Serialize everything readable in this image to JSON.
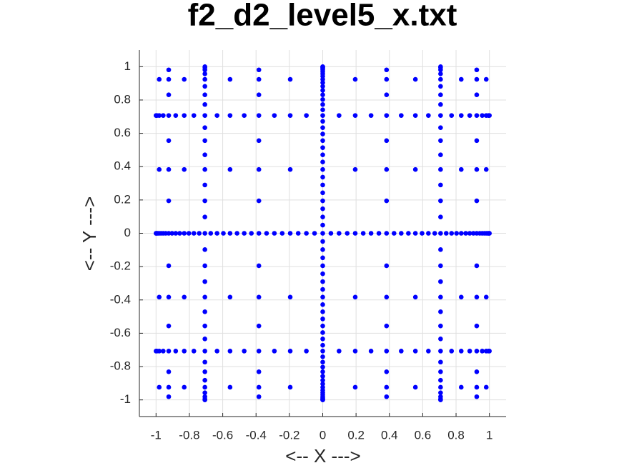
{
  "chart_data": {
    "type": "scatter",
    "title": "f2_d2_level5_x.txt",
    "x_label": "<-- X --->",
    "y_label": "<-- Y --->",
    "color": "#0000ff",
    "grid": true,
    "xlim": [
      -1.1,
      1.1
    ],
    "ylim": [
      -1.1,
      1.1
    ],
    "xticks": [
      -1,
      -0.8,
      -0.6,
      -0.4,
      -0.2,
      0,
      0.2,
      0.4,
      0.6,
      0.8,
      1
    ],
    "yticks": [
      -1,
      -0.8,
      -0.6,
      -0.4,
      -0.2,
      0,
      0.2,
      0.4,
      0.6,
      0.8,
      1
    ],
    "rows": [
      {
        "y": 1,
        "x": [
          -0.707,
          0,
          0.707
        ]
      },
      {
        "y": 0.999,
        "x": [
          0
        ]
      },
      {
        "y": 0.995,
        "x": [
          -0.707,
          0,
          0.707
        ]
      },
      {
        "y": 0.989,
        "x": [
          0
        ]
      },
      {
        "y": 0.981,
        "x": [
          -0.924,
          -0.707,
          -0.383,
          0,
          0.383,
          0.707,
          0.924
        ]
      },
      {
        "y": 0.97,
        "x": [
          0
        ]
      },
      {
        "y": 0.957,
        "x": [
          -0.707,
          0,
          0.707
        ]
      },
      {
        "y": 0.942,
        "x": [
          0
        ]
      },
      {
        "y": 0.924,
        "x": [
          -0.981,
          -0.924,
          -0.831,
          -0.707,
          -0.556,
          -0.383,
          -0.195,
          0,
          0.195,
          0.383,
          0.556,
          0.707,
          0.831,
          0.924,
          0.981
        ]
      },
      {
        "y": 0.904,
        "x": [
          0
        ]
      },
      {
        "y": 0.882,
        "x": [
          -0.707,
          0,
          0.707
        ]
      },
      {
        "y": 0.858,
        "x": [
          0
        ]
      },
      {
        "y": 0.831,
        "x": [
          -0.924,
          -0.707,
          -0.383,
          0,
          0.383,
          0.707,
          0.924
        ]
      },
      {
        "y": 0.803,
        "x": [
          0
        ]
      },
      {
        "y": 0.773,
        "x": [
          -0.707,
          0,
          0.707
        ]
      },
      {
        "y": 0.741,
        "x": [
          0
        ]
      },
      {
        "y": 0.707,
        "x": [
          -1,
          -0.995,
          -0.981,
          -0.957,
          -0.924,
          -0.882,
          -0.831,
          -0.773,
          -0.707,
          -0.634,
          -0.556,
          -0.471,
          -0.383,
          -0.29,
          -0.195,
          -0.098,
          0,
          0.098,
          0.195,
          0.29,
          0.383,
          0.471,
          0.556,
          0.634,
          0.707,
          0.773,
          0.831,
          0.882,
          0.924,
          0.957,
          0.981,
          0.995,
          1
        ]
      },
      {
        "y": 0.672,
        "x": [
          0
        ]
      },
      {
        "y": 0.634,
        "x": [
          -0.707,
          0,
          0.707
        ]
      },
      {
        "y": 0.596,
        "x": [
          0
        ]
      },
      {
        "y": 0.556,
        "x": [
          -0.924,
          -0.707,
          -0.383,
          0,
          0.383,
          0.707,
          0.924
        ]
      },
      {
        "y": 0.514,
        "x": [
          0
        ]
      },
      {
        "y": 0.471,
        "x": [
          -0.707,
          0,
          0.707
        ]
      },
      {
        "y": 0.428,
        "x": [
          0
        ]
      },
      {
        "y": 0.383,
        "x": [
          -0.981,
          -0.924,
          -0.831,
          -0.707,
          -0.556,
          -0.383,
          -0.195,
          0,
          0.195,
          0.383,
          0.556,
          0.707,
          0.831,
          0.924,
          0.981
        ]
      },
      {
        "y": 0.337,
        "x": [
          0
        ]
      },
      {
        "y": 0.29,
        "x": [
          -0.707,
          0,
          0.707
        ]
      },
      {
        "y": 0.243,
        "x": [
          0
        ]
      },
      {
        "y": 0.195,
        "x": [
          -0.924,
          -0.707,
          -0.383,
          0,
          0.383,
          0.707,
          0.924
        ]
      },
      {
        "y": 0.147,
        "x": [
          0
        ]
      },
      {
        "y": 0.098,
        "x": [
          -0.707,
          0,
          0.707
        ]
      },
      {
        "y": 0.049,
        "x": [
          0
        ]
      },
      {
        "y": 0,
        "x": [
          -1,
          -0.999,
          -0.995,
          -0.989,
          -0.981,
          -0.97,
          -0.957,
          -0.942,
          -0.924,
          -0.904,
          -0.882,
          -0.858,
          -0.831,
          -0.803,
          -0.773,
          -0.741,
          -0.707,
          -0.672,
          -0.634,
          -0.596,
          -0.556,
          -0.514,
          -0.471,
          -0.428,
          -0.383,
          -0.337,
          -0.29,
          -0.243,
          -0.195,
          -0.147,
          -0.098,
          -0.049,
          0,
          0.049,
          0.098,
          0.147,
          0.195,
          0.243,
          0.29,
          0.337,
          0.383,
          0.428,
          0.471,
          0.514,
          0.556,
          0.596,
          0.634,
          0.672,
          0.707,
          0.741,
          0.773,
          0.803,
          0.831,
          0.858,
          0.882,
          0.904,
          0.924,
          0.942,
          0.957,
          0.97,
          0.981,
          0.989,
          0.995,
          0.999,
          1
        ]
      },
      {
        "y": -0.049,
        "x": [
          0
        ]
      },
      {
        "y": -0.098,
        "x": [
          -0.707,
          0,
          0.707
        ]
      },
      {
        "y": -0.147,
        "x": [
          0
        ]
      },
      {
        "y": -0.195,
        "x": [
          -0.924,
          -0.707,
          -0.383,
          0,
          0.383,
          0.707,
          0.924
        ]
      },
      {
        "y": -0.243,
        "x": [
          0
        ]
      },
      {
        "y": -0.29,
        "x": [
          -0.707,
          0,
          0.707
        ]
      },
      {
        "y": -0.337,
        "x": [
          0
        ]
      },
      {
        "y": -0.383,
        "x": [
          -0.981,
          -0.924,
          -0.831,
          -0.707,
          -0.556,
          -0.383,
          -0.195,
          0,
          0.195,
          0.383,
          0.556,
          0.707,
          0.831,
          0.924,
          0.981
        ]
      },
      {
        "y": -0.428,
        "x": [
          0
        ]
      },
      {
        "y": -0.471,
        "x": [
          -0.707,
          0,
          0.707
        ]
      },
      {
        "y": -0.514,
        "x": [
          0
        ]
      },
      {
        "y": -0.556,
        "x": [
          -0.924,
          -0.707,
          -0.383,
          0,
          0.383,
          0.707,
          0.924
        ]
      },
      {
        "y": -0.596,
        "x": [
          0
        ]
      },
      {
        "y": -0.634,
        "x": [
          -0.707,
          0,
          0.707
        ]
      },
      {
        "y": -0.672,
        "x": [
          0
        ]
      },
      {
        "y": -0.707,
        "x": [
          -1,
          -0.995,
          -0.981,
          -0.957,
          -0.924,
          -0.882,
          -0.831,
          -0.773,
          -0.707,
          -0.634,
          -0.556,
          -0.471,
          -0.383,
          -0.29,
          -0.195,
          -0.098,
          0,
          0.098,
          0.195,
          0.29,
          0.383,
          0.471,
          0.556,
          0.634,
          0.707,
          0.773,
          0.831,
          0.882,
          0.924,
          0.957,
          0.981,
          0.995,
          1
        ]
      },
      {
        "y": -0.741,
        "x": [
          0
        ]
      },
      {
        "y": -0.773,
        "x": [
          -0.707,
          0,
          0.707
        ]
      },
      {
        "y": -0.803,
        "x": [
          0
        ]
      },
      {
        "y": -0.831,
        "x": [
          -0.924,
          -0.707,
          -0.383,
          0,
          0.383,
          0.707,
          0.924
        ]
      },
      {
        "y": -0.858,
        "x": [
          0
        ]
      },
      {
        "y": -0.882,
        "x": [
          -0.707,
          0,
          0.707
        ]
      },
      {
        "y": -0.904,
        "x": [
          0
        ]
      },
      {
        "y": -0.924,
        "x": [
          -0.981,
          -0.924,
          -0.831,
          -0.707,
          -0.556,
          -0.383,
          -0.195,
          0,
          0.195,
          0.383,
          0.556,
          0.707,
          0.831,
          0.924,
          0.981
        ]
      },
      {
        "y": -0.942,
        "x": [
          0
        ]
      },
      {
        "y": -0.957,
        "x": [
          -0.707,
          0,
          0.707
        ]
      },
      {
        "y": -0.97,
        "x": [
          0
        ]
      },
      {
        "y": -0.981,
        "x": [
          -0.924,
          -0.707,
          -0.383,
          0,
          0.383,
          0.707,
          0.924
        ]
      },
      {
        "y": -0.989,
        "x": [
          0
        ]
      },
      {
        "y": -0.995,
        "x": [
          -0.707,
          0,
          0.707
        ]
      },
      {
        "y": -0.999,
        "x": [
          0
        ]
      },
      {
        "y": -1,
        "x": [
          -0.707,
          0,
          0.707
        ]
      }
    ]
  }
}
